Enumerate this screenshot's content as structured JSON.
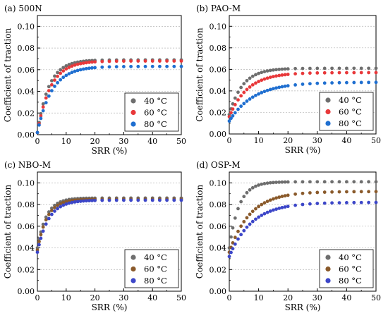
{
  "chart_data": [
    {
      "type": "scatter",
      "title": "(a) 500N",
      "xlabel": "SRR (%)",
      "ylabel": "Coefficient of traction",
      "xlim": [
        0,
        50
      ],
      "ylim": [
        0,
        0.11
      ],
      "xticks": [
        "0",
        "10",
        "20",
        "30",
        "40",
        "50"
      ],
      "yticks": [
        "0.00",
        "0.02",
        "0.04",
        "0.06",
        "0.08",
        "0.10"
      ],
      "grid": true,
      "legend_position": "bottom-right",
      "series": [
        {
          "name": "40 °C",
          "color": "#6e6e6e",
          "asymptote": 0.069,
          "rate": 0.25,
          "start": 0.002
        },
        {
          "name": "60 °C",
          "color": "#e8383a",
          "asymptote": 0.068,
          "rate": 0.22,
          "start": 0.002
        },
        {
          "name": "80 °C",
          "color": "#1f6fd0",
          "asymptote": 0.063,
          "rate": 0.2,
          "start": 0.002
        }
      ]
    },
    {
      "type": "scatter",
      "title": "(b) PAO-M",
      "xlabel": "SRR (%)",
      "ylabel": "Coefficient of traction",
      "xlim": [
        0,
        50
      ],
      "ylim": [
        0,
        0.11
      ],
      "xticks": [
        "0",
        "10",
        "20",
        "30",
        "40",
        "50"
      ],
      "yticks": [
        "0.00",
        "0.02",
        "0.04",
        "0.06",
        "0.08",
        "0.10"
      ],
      "grid": true,
      "legend_position": "bottom-right",
      "series": [
        {
          "name": "40 °C",
          "color": "#6e6e6e",
          "asymptote": 0.061,
          "rate": 0.22,
          "start": 0.018
        },
        {
          "name": "60 °C",
          "color": "#e8383a",
          "asymptote": 0.057,
          "rate": 0.16,
          "start": 0.016
        },
        {
          "name": "80 °C",
          "color": "#1f6fd0",
          "asymptote": 0.048,
          "rate": 0.12,
          "start": 0.012
        }
      ]
    },
    {
      "type": "scatter",
      "title": "(c) NBO-M",
      "xlabel": "SRR (%)",
      "ylabel": "Coefficient of traction",
      "xlim": [
        0,
        50
      ],
      "ylim": [
        0,
        0.11
      ],
      "xticks": [
        "0",
        "10",
        "20",
        "30",
        "40",
        "50"
      ],
      "yticks": [
        "0.00",
        "0.02",
        "0.04",
        "0.06",
        "0.08",
        "0.10"
      ],
      "grid": true,
      "legend_position": "bottom-right",
      "series": [
        {
          "name": "40 °C",
          "color": "#6e6e6e",
          "asymptote": 0.086,
          "rate": 0.32,
          "start": 0.04
        },
        {
          "name": "60 °C",
          "color": "#8a5a2b",
          "asymptote": 0.085,
          "rate": 0.3,
          "start": 0.038
        },
        {
          "name": "80 °C",
          "color": "#3c46c8",
          "asymptote": 0.084,
          "rate": 0.26,
          "start": 0.036
        }
      ]
    },
    {
      "type": "scatter",
      "title": "(d) OSP-M",
      "xlabel": "SRR (%)",
      "ylabel": "Coefficient of traction",
      "xlim": [
        0,
        50
      ],
      "ylim": [
        0,
        0.11
      ],
      "xticks": [
        "0",
        "10",
        "20",
        "30",
        "40",
        "50"
      ],
      "yticks": [
        "0.00",
        "0.02",
        "0.04",
        "0.06",
        "0.08",
        "0.10"
      ],
      "grid": true,
      "legend_position": "bottom-right",
      "series": [
        {
          "name": "40 °C",
          "color": "#6e6e6e",
          "asymptote": 0.101,
          "rate": 0.3,
          "start": 0.04
        },
        {
          "name": "60 °C",
          "color": "#8a5a2b",
          "asymptote": 0.092,
          "rate": 0.14,
          "start": 0.036
        },
        {
          "name": "80 °C",
          "color": "#3c46c8",
          "asymptote": 0.082,
          "rate": 0.13,
          "start": 0.032
        }
      ]
    }
  ]
}
